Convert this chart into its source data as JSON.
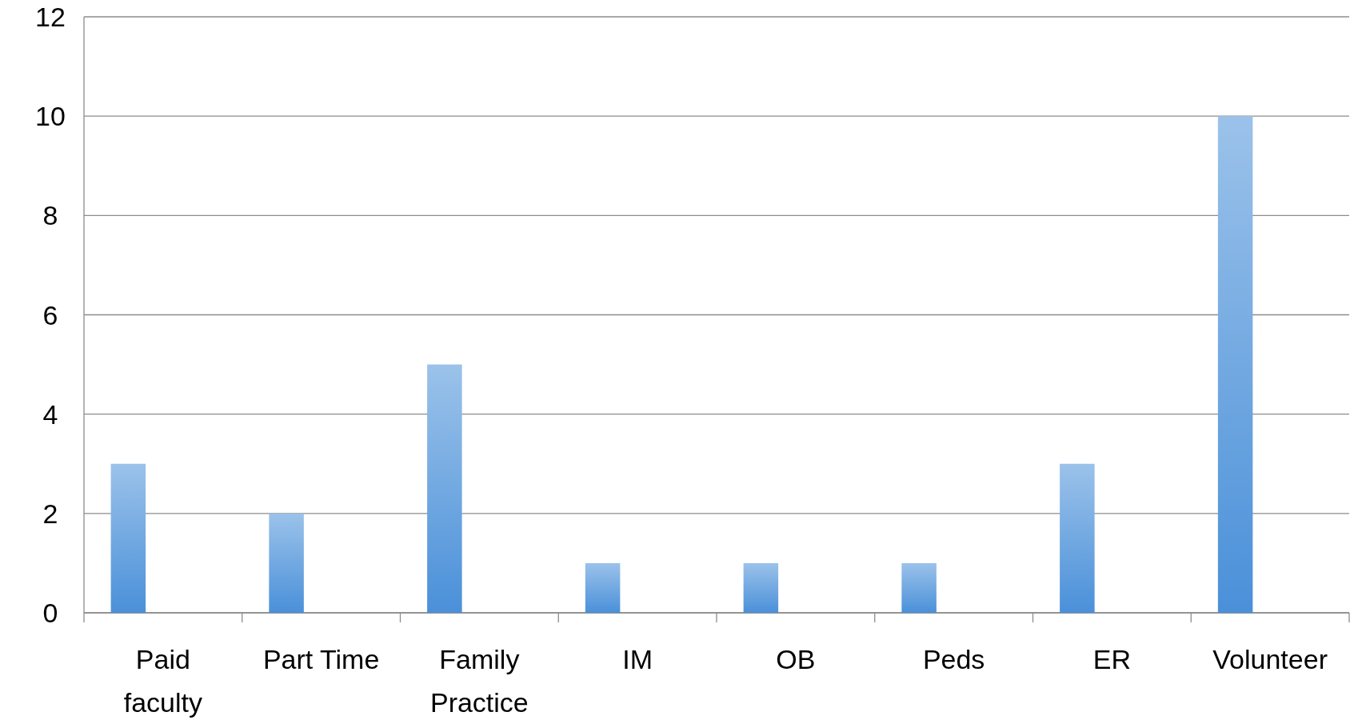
{
  "chart_data": {
    "type": "bar",
    "categories": [
      "Paid faculty",
      "Part Time",
      "Family Practice",
      "IM",
      "OB",
      "Peds",
      "ER",
      "Volunteer"
    ],
    "values": [
      3,
      2,
      5,
      1,
      1,
      1,
      3,
      10
    ],
    "color": "#4a90d9",
    "ylim": [
      0,
      12
    ],
    "yticks": [
      0,
      2,
      4,
      6,
      8,
      10,
      12
    ],
    "grid": "y"
  }
}
